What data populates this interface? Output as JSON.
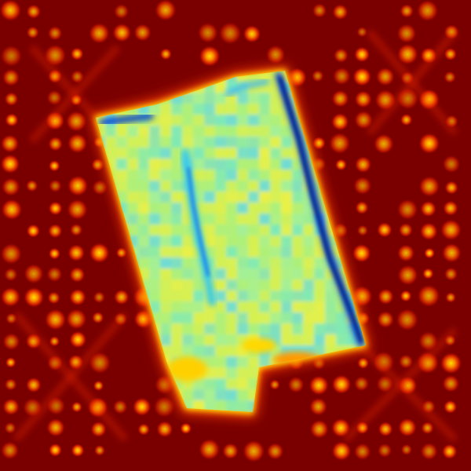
{
  "image": {
    "kind": "thermal-heatmap",
    "colormap": "jet",
    "colors": {
      "background": "#7a0000",
      "dot_core": "#ffd200",
      "dot_mid": "#ff5a00",
      "dot_outer": "#d01000",
      "slab_edge": "#ffe800",
      "slab_fill": "#c8f060",
      "slab_cool": "#40e0f0",
      "slab_cold": "#0040e0"
    }
  }
}
